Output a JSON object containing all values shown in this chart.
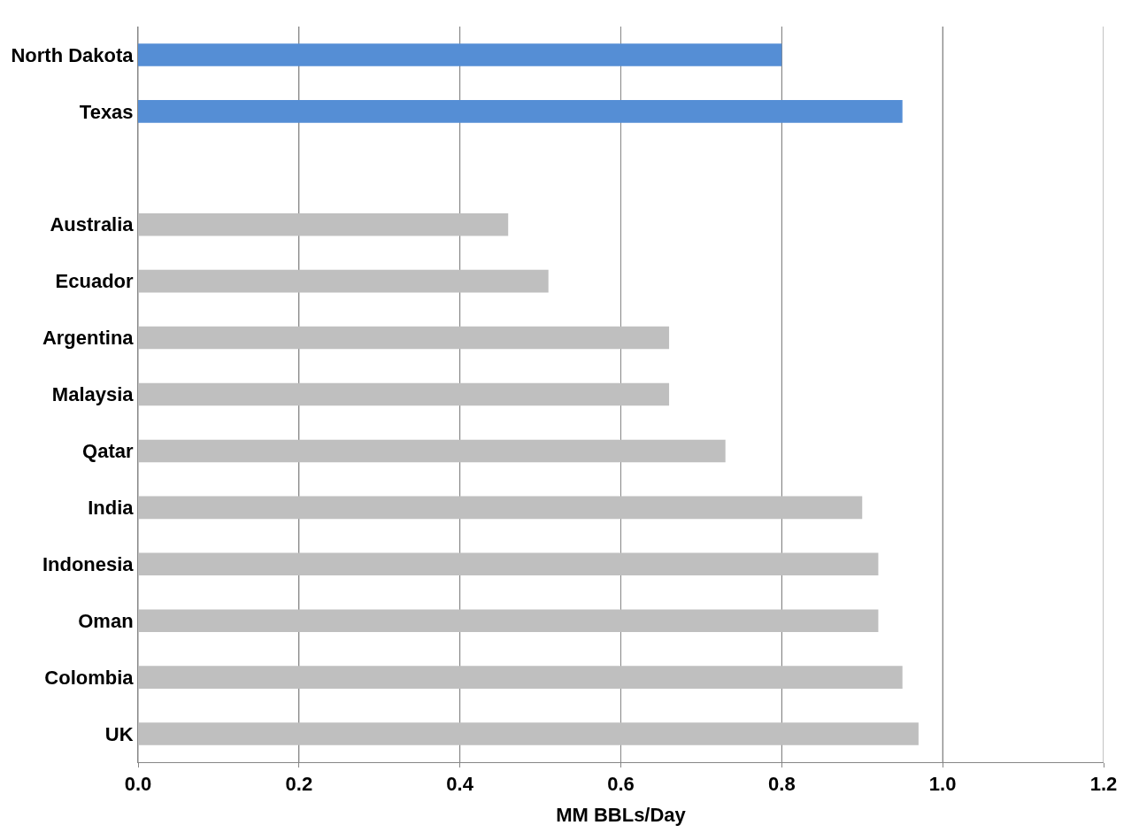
{
  "chart_data": {
    "type": "bar",
    "orientation": "horizontal",
    "xlabel": "MM BBLs/Day",
    "categories": [
      "North Dakota",
      "Texas",
      null,
      "Australia",
      "Ecuador",
      "Argentina",
      "Malaysia",
      "Qatar",
      "India",
      "Indonesia",
      "Oman",
      "Colombia",
      "UK"
    ],
    "values": [
      0.8,
      0.95,
      null,
      0.46,
      0.51,
      0.66,
      0.66,
      0.73,
      0.9,
      0.92,
      0.92,
      0.95,
      0.97
    ],
    "colors": [
      "#558ed5",
      "#558ed5",
      null,
      "#bfbfbf",
      "#bfbfbf",
      "#bfbfbf",
      "#bfbfbf",
      "#bfbfbf",
      "#bfbfbf",
      "#bfbfbf",
      "#bfbfbf",
      "#bfbfbf",
      "#bfbfbf"
    ],
    "xlim": [
      0,
      1.2
    ],
    "xticks": [
      {
        "value": 0,
        "label": "0.0"
      },
      {
        "value": 0.2,
        "label": "0.2"
      },
      {
        "value": 0.4,
        "label": "0.4"
      },
      {
        "value": 0.6,
        "label": "0.6"
      },
      {
        "value": 0.8,
        "label": "0.8"
      },
      {
        "value": 1.0,
        "label": "1.0"
      },
      {
        "value": 1.2,
        "label": "1.2"
      }
    ],
    "grid": "x"
  }
}
